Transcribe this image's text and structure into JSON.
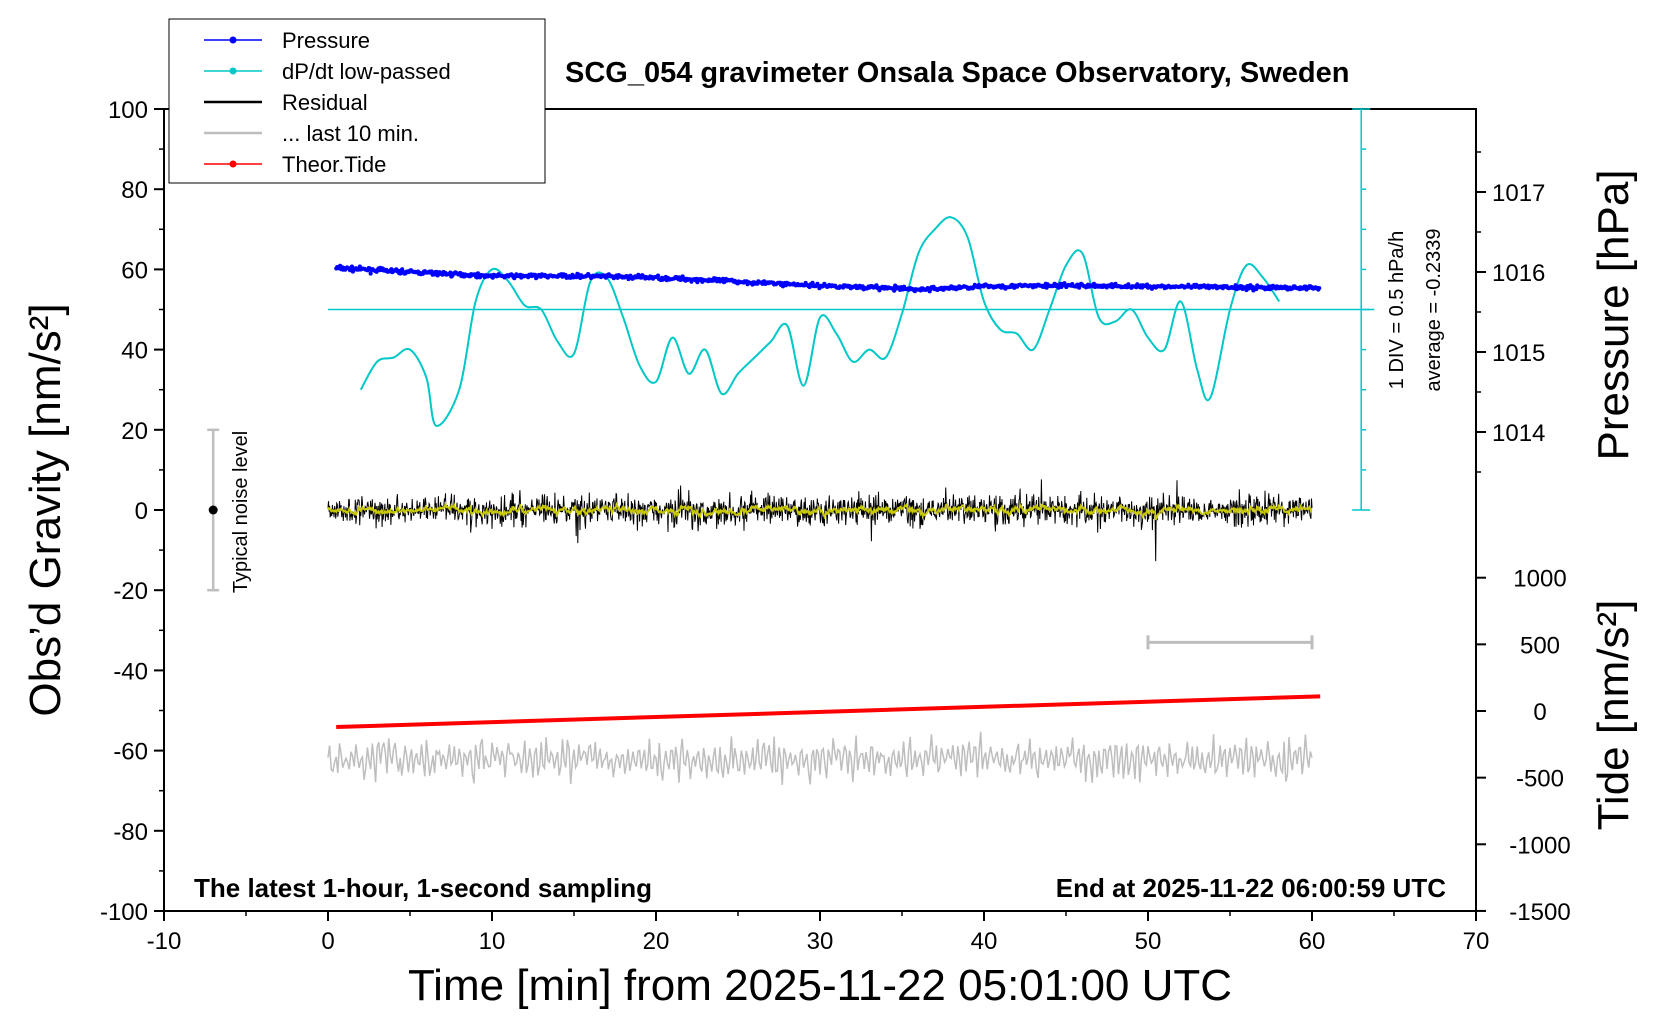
{
  "title": "SCG_054 gravimeter Onsala Space Observatory, Sweden",
  "bottom_left_note": "The latest 1-hour, 1-second sampling",
  "bottom_right_note": "End at 2025-11-22 06:00:59 UTC",
  "noise_label": "Typical noise level",
  "deriv_scale_label": "1 DIV = 0.5 hPa/h",
  "deriv_average_label": "average = -0.2339",
  "legend": [
    {
      "label": "Pressure",
      "color": "#0000ff",
      "marker": true
    },
    {
      "label": "dP/dt low-passed",
      "color": "#00c8c8",
      "marker": true
    },
    {
      "label": "Residual",
      "color": "#000000",
      "marker": false
    },
    {
      "label": "... last 10 min.",
      "color": "#bebebe",
      "marker": false
    },
    {
      "label": "Theor.Tide",
      "color": "#ff0000",
      "marker": true
    }
  ],
  "chart_data": {
    "type": "line",
    "xlabel": "Time [min] from 2025-11-22 05:01:00 UTC",
    "xlim": [
      -10,
      70
    ],
    "xticks": [
      "-10",
      "0",
      "10",
      "20",
      "30",
      "40",
      "50",
      "60",
      "70"
    ],
    "y_left": {
      "label": "Obs’d Gravity [nm/s²]",
      "ylim": [
        -100,
        100
      ],
      "ticks": [
        "100",
        "80",
        "60",
        "40",
        "20",
        "0",
        "-20",
        "-40",
        "-60",
        "-80",
        "-100"
      ]
    },
    "y_right_pressure": {
      "label": "Pressure [hPa]",
      "ticks": [
        "1017",
        "1016",
        "1015",
        "1014"
      ]
    },
    "y_right_tide": {
      "label": "Tide [nm/s²]",
      "ticks": [
        "1000",
        "500",
        "0",
        "-500",
        "-1000",
        "-1500"
      ]
    },
    "noise_bar": {
      "x": -7,
      "center": 0,
      "low": -20,
      "high": 20
    },
    "colors": {
      "pressure": "#0000ff",
      "dpdt": "#00c8c8",
      "residual": "#000000",
      "residual_smooth": "#c8c800",
      "last10": "#bebebe",
      "tide": "#ff0000"
    },
    "series": [
      {
        "name": "Pressure",
        "axis": "pressure_hPa",
        "x": [
          0.5,
          5,
          10,
          15,
          20,
          25,
          30,
          33,
          36,
          40,
          45,
          50,
          55,
          60.5
        ],
        "values": [
          1016.05,
          1016.0,
          1015.95,
          1015.95,
          1015.93,
          1015.88,
          1015.83,
          1015.81,
          1015.78,
          1015.82,
          1015.83,
          1015.82,
          1015.81,
          1015.8
        ]
      },
      {
        "name": "dP/dt low-passed",
        "axis": "gravity_units",
        "x": [
          2,
          3,
          4,
          5,
          6,
          6.6,
          8,
          9,
          10,
          11,
          12,
          13,
          14,
          15,
          16,
          17,
          18,
          19,
          20,
          21,
          22,
          23,
          24,
          25,
          26,
          27,
          28,
          29,
          30,
          31,
          32,
          33,
          34,
          35,
          36,
          37,
          38,
          39,
          40,
          41,
          42,
          43,
          44,
          45,
          46,
          47,
          48,
          49,
          50,
          51,
          52,
          53,
          53.8,
          55,
          56,
          57,
          58
        ],
        "values": [
          30,
          37,
          38,
          40,
          33,
          21,
          30,
          52,
          60,
          57,
          51,
          50,
          42,
          39,
          57,
          58,
          48,
          36,
          32,
          43,
          34,
          40,
          29,
          34,
          38,
          42,
          46,
          31,
          48,
          44,
          37,
          40,
          38,
          49,
          64,
          70,
          73,
          68,
          52,
          45,
          44,
          40,
          50,
          61,
          64,
          48,
          47,
          50,
          43,
          40,
          52,
          35,
          28,
          50,
          61,
          58,
          52
        ]
      },
      {
        "name": "Theor.Tide",
        "axis": "tide_nm_s2",
        "x": [
          0.5,
          60.5
        ],
        "values": [
          -120,
          110
        ]
      }
    ],
    "dpdt_reference_line": 50,
    "last10_window": {
      "x": [
        50,
        60
      ]
    }
  }
}
